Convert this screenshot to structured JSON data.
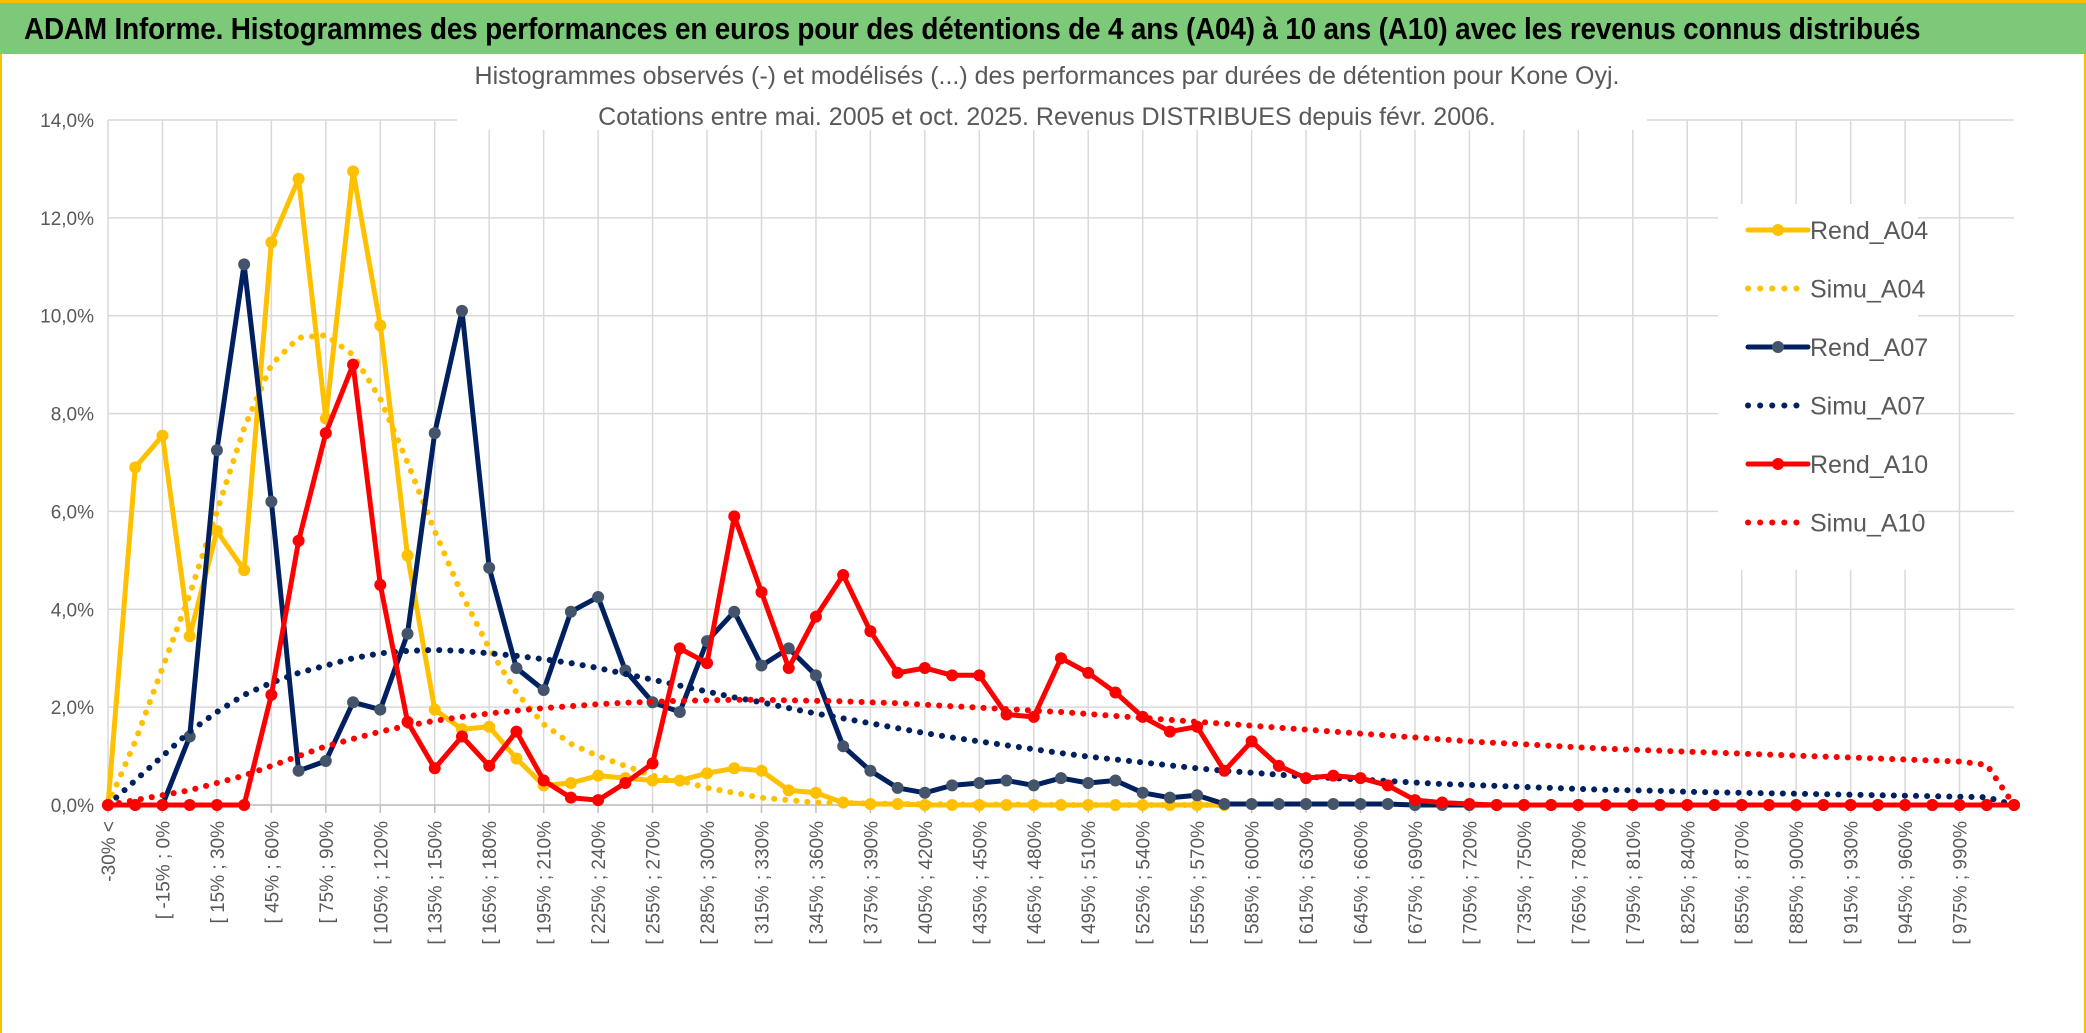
{
  "header": {
    "title": "ADAM Informe. Histogrammes des performances en euros pour des détentions de 4 ans (A04) à 10 ans (A10) avec les revenus connus distribués"
  },
  "colors": {
    "banner": "#7dc97a",
    "accent_border": "#f2c200",
    "A04": "#ffc000",
    "A07": "#002060",
    "A07_marker": "#44546a",
    "A10": "#ff0000"
  },
  "chart_data": {
    "type": "line",
    "title": "Histogrammes observés (-) et modélisés (...) des performances par durées de détention pour Kone Oyj.",
    "subtitle": "Cotations entre mai. 2005 et oct. 2025. Revenus DISTRIBUES depuis févr. 2006.",
    "xlabel": "",
    "ylabel": "",
    "ylim": [
      0,
      14
    ],
    "yticks": [
      "0,0%",
      "2,0%",
      "4,0%",
      "6,0%",
      "8,0%",
      "10,0%",
      "12,0%",
      "14,0%"
    ],
    "grid": true,
    "legend_position": "right",
    "x_tick_labels": [
      "-30% <",
      "[ -15% ; 0%",
      "[ 15% ; 30%",
      "[ 45% ; 60%",
      "[ 75% ; 90%",
      "[ 105% ; 120%",
      "[ 135% ; 150%",
      "[ 165% ; 180%",
      "[ 195% ; 210%",
      "[ 225% ; 240%",
      "[ 255% ; 270%",
      "[ 285% ; 300%",
      "[ 315% ; 330%",
      "[ 345% ; 360%",
      "[ 375% ; 390%",
      "[ 405% ; 420%",
      "[ 435% ; 450%",
      "[ 465% ; 480%",
      "[ 495% ; 510%",
      "[ 525% ; 540%",
      "[ 555% ; 570%",
      "[ 585% ; 600%",
      "[ 615% ; 630%",
      "[ 645% ; 660%",
      "[ 675% ; 690%",
      "[ 705% ; 720%",
      "[ 735% ; 750%",
      "[ 765% ; 780%",
      "[ 795% ; 810%",
      "[ 825% ; 840%",
      "[ 855% ; 870%",
      "[ 885% ; 900%",
      "[ 915% ; 930%",
      "[ 945% ; 960%",
      "[ 975% ; 990%"
    ],
    "series": [
      {
        "name": "Rend_A04",
        "style": "solid",
        "color": "#ffc000",
        "values": [
          0.0,
          6.9,
          7.55,
          3.45,
          5.6,
          4.8,
          11.5,
          12.8,
          7.9,
          12.95,
          9.8,
          5.1,
          1.95,
          1.55,
          1.6,
          0.95,
          0.4,
          0.45,
          0.6,
          0.55,
          0.5,
          0.5,
          0.65,
          0.75,
          0.7,
          0.3,
          0.25,
          0.05,
          0.02,
          0.02,
          0.0,
          0.0,
          0.0,
          0.0,
          0.0,
          0.0,
          0.0,
          0.0,
          0.0,
          0.0,
          0.0,
          0.0
        ]
      },
      {
        "name": "Simu_A04",
        "style": "dotted",
        "color": "#ffc000",
        "values": [
          0.0,
          1.3,
          2.8,
          4.3,
          6.0,
          7.7,
          9.0,
          9.55,
          9.6,
          9.2,
          8.3,
          7.0,
          5.6,
          4.3,
          3.2,
          2.3,
          1.65,
          1.25,
          1.0,
          0.8,
          0.6,
          0.5,
          0.35,
          0.25,
          0.15,
          0.1,
          0.05,
          0.04,
          0.03,
          0.02,
          0.02,
          0.01,
          0.01,
          0.01,
          0.01,
          0.0,
          0.0,
          0.0,
          0.0,
          0.0,
          0.0,
          0.0
        ]
      },
      {
        "name": "Rend_A07",
        "style": "solid",
        "color": "#002060",
        "values": [
          0.0,
          0.0,
          0.0,
          1.4,
          7.25,
          11.05,
          6.2,
          0.7,
          0.9,
          2.1,
          1.95,
          3.5,
          7.6,
          10.1,
          4.85,
          2.8,
          2.35,
          3.95,
          4.25,
          2.75,
          2.1,
          1.9,
          3.35,
          3.95,
          2.85,
          3.2,
          2.65,
          1.2,
          0.7,
          0.35,
          0.25,
          0.4,
          0.45,
          0.5,
          0.4,
          0.55,
          0.45,
          0.5,
          0.25,
          0.15,
          0.2,
          0.02,
          0.02,
          0.02,
          0.02,
          0.02,
          0.02,
          0.02,
          0.0,
          0.0,
          0.0,
          0.0,
          0.0,
          0.0,
          0.0,
          0.0,
          0.0,
          0.0,
          0.0,
          0.0,
          0.0,
          0.0,
          0.0,
          0.0,
          0.0,
          0.0,
          0.0,
          0.0,
          0.0,
          0.0,
          0.0
        ]
      },
      {
        "name": "Simu_A07",
        "style": "dotted",
        "color": "#002060",
        "values": [
          0.0,
          0.5,
          1.0,
          1.5,
          1.9,
          2.25,
          2.5,
          2.7,
          2.85,
          3.0,
          3.1,
          3.15,
          3.17,
          3.15,
          3.1,
          3.05,
          2.98,
          2.9,
          2.8,
          2.68,
          2.56,
          2.44,
          2.32,
          2.2,
          2.1,
          1.98,
          1.87,
          1.77,
          1.67,
          1.57,
          1.47,
          1.38,
          1.3,
          1.22,
          1.14,
          1.06,
          0.99,
          0.93,
          0.87,
          0.81,
          0.75,
          0.7,
          0.66,
          0.62,
          0.58,
          0.55,
          0.52,
          0.49,
          0.46,
          0.43,
          0.41,
          0.39,
          0.37,
          0.35,
          0.33,
          0.31,
          0.3,
          0.29,
          0.27,
          0.26,
          0.25,
          0.24,
          0.23,
          0.22,
          0.21,
          0.2,
          0.19,
          0.18,
          0.17,
          0.16,
          0.0
        ]
      },
      {
        "name": "Rend_A10",
        "style": "solid",
        "color": "#ff0000",
        "values": [
          0.0,
          0.0,
          0.0,
          0.0,
          0.0,
          0.0,
          2.25,
          5.4,
          7.6,
          9.0,
          4.5,
          1.7,
          0.75,
          1.4,
          0.8,
          1.5,
          0.5,
          0.15,
          0.1,
          0.45,
          0.85,
          3.2,
          2.9,
          5.9,
          4.35,
          2.8,
          3.85,
          4.7,
          3.55,
          2.7,
          2.8,
          2.65,
          2.65,
          1.85,
          1.8,
          3.0,
          2.7,
          2.3,
          1.8,
          1.5,
          1.6,
          0.7,
          1.3,
          0.8,
          0.55,
          0.6,
          0.55,
          0.4,
          0.1,
          0.05,
          0.02,
          0.0,
          0.0,
          0.0,
          0.0,
          0.0,
          0.0,
          0.0,
          0.0,
          0.0,
          0.0,
          0.0,
          0.0,
          0.0,
          0.0,
          0.0,
          0.0,
          0.0,
          0.0,
          0.0,
          0.0
        ]
      },
      {
        "name": "Simu_A10",
        "style": "dotted",
        "color": "#ff0000",
        "values": [
          0.0,
          0.1,
          0.2,
          0.3,
          0.45,
          0.6,
          0.8,
          1.0,
          1.2,
          1.35,
          1.5,
          1.62,
          1.72,
          1.8,
          1.87,
          1.93,
          1.98,
          2.02,
          2.06,
          2.09,
          2.11,
          2.13,
          2.14,
          2.15,
          2.15,
          2.14,
          2.13,
          2.12,
          2.1,
          2.08,
          2.05,
          2.02,
          1.99,
          1.96,
          1.93,
          1.9,
          1.86,
          1.82,
          1.78,
          1.74,
          1.7,
          1.66,
          1.62,
          1.58,
          1.54,
          1.5,
          1.46,
          1.42,
          1.38,
          1.34,
          1.3,
          1.27,
          1.24,
          1.21,
          1.18,
          1.15,
          1.13,
          1.11,
          1.09,
          1.07,
          1.05,
          1.03,
          1.01,
          0.99,
          0.97,
          0.95,
          0.93,
          0.91,
          0.89,
          0.82,
          0.0
        ]
      }
    ]
  },
  "legend": {
    "items": [
      {
        "label": "Rend_A04",
        "style": "solid",
        "color": "#ffc000",
        "marker": true
      },
      {
        "label": "Simu_A04",
        "style": "dotted",
        "color": "#ffc000",
        "marker": false
      },
      {
        "label": "Rend_A07",
        "style": "solid",
        "color": "#002060",
        "marker": true
      },
      {
        "label": "Simu_A07",
        "style": "dotted",
        "color": "#002060",
        "marker": false
      },
      {
        "label": "Rend_A10",
        "style": "solid",
        "color": "#ff0000",
        "marker": true
      },
      {
        "label": "Simu_A10",
        "style": "dotted",
        "color": "#ff0000",
        "marker": false
      }
    ]
  }
}
